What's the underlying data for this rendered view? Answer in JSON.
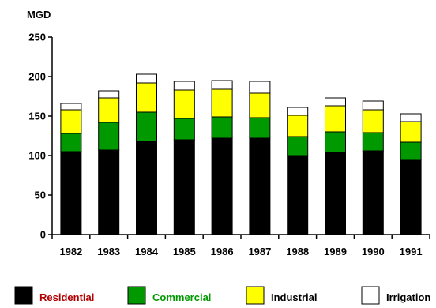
{
  "chart_data": {
    "type": "bar",
    "stacked": true,
    "title": "",
    "xlabel": "",
    "ylabel": "MGD",
    "ylim": [
      0,
      250
    ],
    "yticks": [
      0,
      50,
      100,
      150,
      200,
      250
    ],
    "grid": false,
    "legend_position": "bottom",
    "categories": [
      "1982",
      "1983",
      "1984",
      "1985",
      "1986",
      "1987",
      "1988",
      "1989",
      "1990",
      "1991"
    ],
    "series": [
      {
        "name": "Residential",
        "color": "#000000",
        "legend_text_color": "#b00000",
        "values": [
          105,
          107,
          118,
          120,
          122,
          122,
          100,
          104,
          106,
          95
        ]
      },
      {
        "name": "Commercial",
        "color": "#009900",
        "legend_text_color": "#009900",
        "values": [
          23,
          35,
          37,
          27,
          27,
          26,
          24,
          26,
          23,
          22
        ]
      },
      {
        "name": "Industrial",
        "color": "#ffff00",
        "legend_text_color": "#000000",
        "values": [
          30,
          31,
          37,
          36,
          35,
          31,
          27,
          33,
          29,
          26
        ]
      },
      {
        "name": "Irrigation",
        "color": "#ffffff",
        "legend_text_color": "#000000",
        "values": [
          8,
          9,
          11,
          11,
          11,
          15,
          10,
          10,
          11,
          10
        ]
      }
    ]
  }
}
